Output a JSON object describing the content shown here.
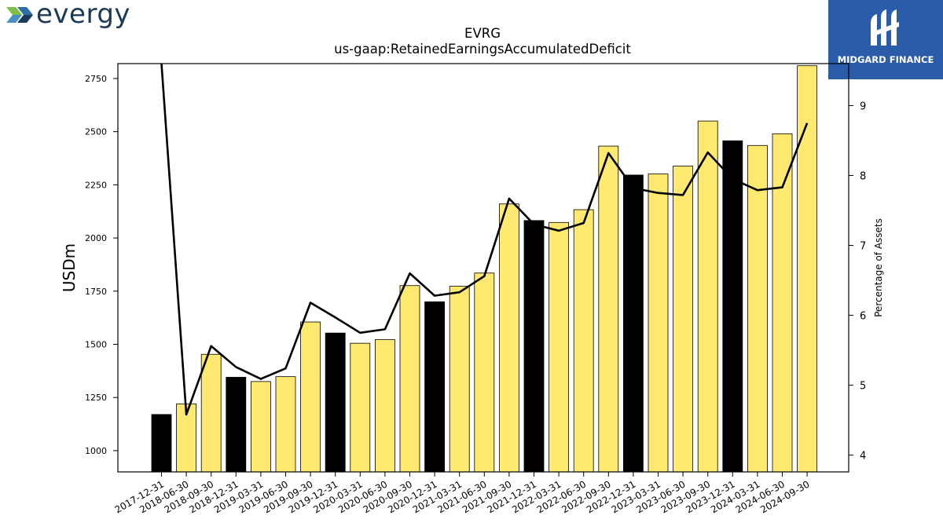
{
  "branding": {
    "left_logo_text": "evergy",
    "right_logo_text": "MIDGARD FINANCE"
  },
  "chart_data": {
    "type": "bar",
    "title": "EVRG",
    "subtitle": "us-gaap:RetainedEarningsAccumulatedDeficit",
    "ylabel": "USDm",
    "y2label": "Percentage of Assets",
    "ylim": [
      900,
      2820
    ],
    "y2lim": [
      3.76,
      9.6
    ],
    "yticks": [
      1000,
      1250,
      1500,
      1750,
      2000,
      2250,
      2500,
      2750
    ],
    "y2ticks": [
      4,
      5,
      6,
      7,
      8,
      9
    ],
    "categories": [
      "2017-12-31",
      "2018-06-30",
      "2018-09-30",
      "2018-12-31",
      "2019-03-31",
      "2019-06-30",
      "2019-09-30",
      "2019-12-31",
      "2020-03-31",
      "2020-06-30",
      "2020-09-30",
      "2020-12-31",
      "2021-03-31",
      "2021-06-30",
      "2021-09-30",
      "2021-12-31",
      "2022-03-31",
      "2022-06-30",
      "2022-09-30",
      "2022-12-31",
      "2023-03-31",
      "2023-06-30",
      "2023-09-30",
      "2023-12-31",
      "2024-03-31",
      "2024-06-30",
      "2024-09-30"
    ],
    "series": [
      {
        "values": [
          1170,
          1220,
          1453,
          1345,
          1325,
          1348,
          1605,
          1553,
          1505,
          1522,
          1776,
          1700,
          1773,
          1835,
          2160,
          2082,
          2073,
          2133,
          2432,
          2296,
          2301,
          2338,
          2550,
          2457,
          2435,
          2490,
          2810
        ]
      },
      {
        "values": [
          9.6,
          4.58,
          5.56,
          5.26,
          5.09,
          5.24,
          6.18,
          5.97,
          5.75,
          5.8,
          6.6,
          6.28,
          6.33,
          6.56,
          7.67,
          7.3,
          7.21,
          7.32,
          8.32,
          7.82,
          7.75,
          7.72,
          8.33,
          7.95,
          7.79,
          7.83,
          8.75
        ]
      }
    ],
    "year_end_bar_color": "#000000",
    "interim_bar_color": "#ffe971",
    "line_color": "#000000",
    "grid": false
  }
}
